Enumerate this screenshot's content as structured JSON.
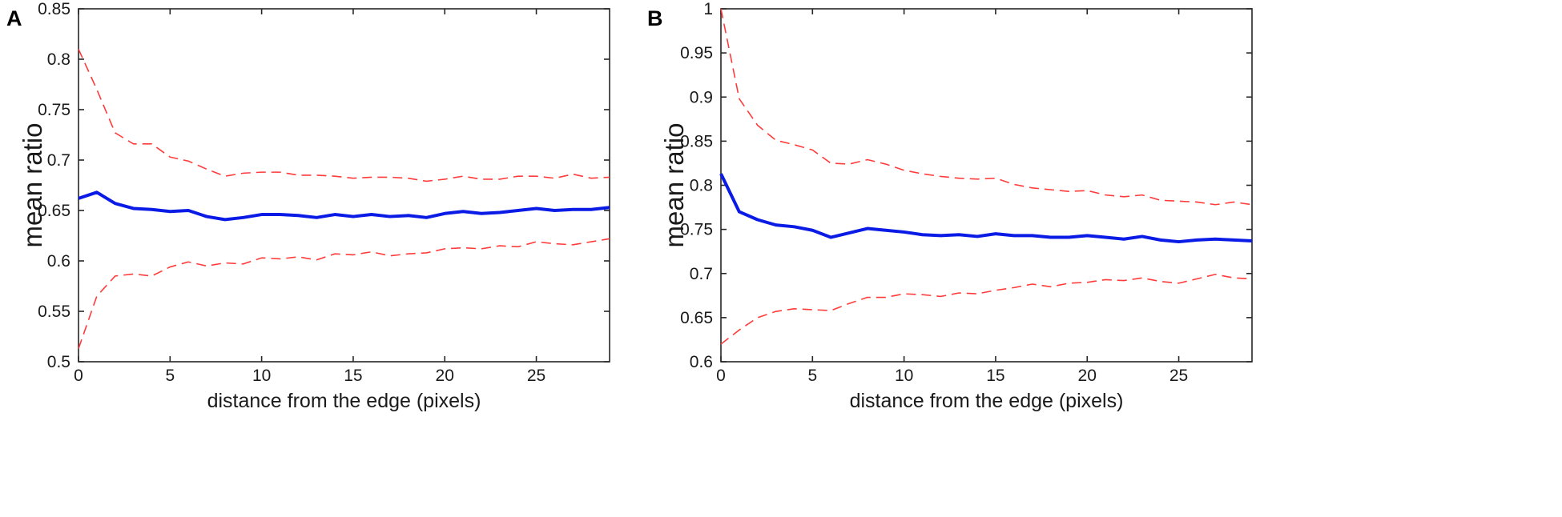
{
  "chart_data": [
    {
      "type": "line",
      "panel": "A",
      "xlabel": "distance from the edge (pixels)",
      "ylabel": "mean ratio",
      "xlim": [
        0,
        29
      ],
      "ylim": [
        0.5,
        0.85
      ],
      "xticks": [
        0,
        5,
        10,
        15,
        20,
        25
      ],
      "xtick_labels": [
        "0",
        "5",
        "10",
        "15",
        "20",
        "25"
      ],
      "yticks": [
        0.5,
        0.55,
        0.6,
        0.65,
        0.7,
        0.75,
        0.8,
        0.85
      ],
      "ytick_labels": [
        "0.5",
        "0.55",
        "0.6",
        "0.65",
        "0.7",
        "0.75",
        "0.8",
        "0.85"
      ],
      "x": [
        0,
        1,
        2,
        3,
        4,
        5,
        6,
        7,
        8,
        9,
        10,
        11,
        12,
        13,
        14,
        15,
        16,
        17,
        18,
        19,
        20,
        21,
        22,
        23,
        24,
        25,
        26,
        27,
        28,
        29
      ],
      "series": [
        {
          "name": "upper",
          "color": "#ff3b3b",
          "style": "dashed",
          "values": [
            0.81,
            0.77,
            0.727,
            0.716,
            0.716,
            0.703,
            0.699,
            0.691,
            0.684,
            0.687,
            0.688,
            0.688,
            0.685,
            0.685,
            0.684,
            0.682,
            0.683,
            0.683,
            0.682,
            0.679,
            0.681,
            0.684,
            0.681,
            0.681,
            0.684,
            0.684,
            0.682,
            0.686,
            0.682,
            0.683
          ]
        },
        {
          "name": "mean",
          "color": "#0a1be6",
          "style": "solid",
          "values": [
            0.662,
            0.668,
            0.657,
            0.652,
            0.651,
            0.649,
            0.65,
            0.644,
            0.641,
            0.643,
            0.646,
            0.646,
            0.645,
            0.643,
            0.646,
            0.644,
            0.646,
            0.644,
            0.645,
            0.643,
            0.647,
            0.649,
            0.647,
            0.648,
            0.65,
            0.652,
            0.65,
            0.651,
            0.651,
            0.653
          ]
        },
        {
          "name": "lower",
          "color": "#ff3b3b",
          "style": "dashed",
          "values": [
            0.513,
            0.565,
            0.585,
            0.587,
            0.585,
            0.594,
            0.599,
            0.595,
            0.598,
            0.597,
            0.603,
            0.602,
            0.604,
            0.601,
            0.607,
            0.606,
            0.609,
            0.605,
            0.607,
            0.608,
            0.612,
            0.613,
            0.612,
            0.615,
            0.614,
            0.619,
            0.617,
            0.616,
            0.619,
            0.622
          ]
        }
      ]
    },
    {
      "type": "line",
      "panel": "B",
      "xlabel": "distance from the edge (pixels)",
      "ylabel": "mean ratio",
      "xlim": [
        0,
        29
      ],
      "ylim": [
        0.6,
        1.0
      ],
      "xticks": [
        0,
        5,
        10,
        15,
        20,
        25
      ],
      "xtick_labels": [
        "0",
        "5",
        "10",
        "15",
        "20",
        "25"
      ],
      "yticks": [
        0.6,
        0.65,
        0.7,
        0.75,
        0.8,
        0.85,
        0.9,
        0.95,
        1.0
      ],
      "ytick_labels": [
        "0.6",
        "0.65",
        "0.7",
        "0.75",
        "0.8",
        "0.85",
        "0.9",
        "0.95",
        "1"
      ],
      "x": [
        0,
        1,
        2,
        3,
        4,
        5,
        6,
        7,
        8,
        9,
        10,
        11,
        12,
        13,
        14,
        15,
        16,
        17,
        18,
        19,
        20,
        21,
        22,
        23,
        24,
        25,
        26,
        27,
        28,
        29
      ],
      "series": [
        {
          "name": "upper",
          "color": "#ff3b3b",
          "style": "dashed",
          "values": [
            1.0,
            0.898,
            0.868,
            0.851,
            0.846,
            0.84,
            0.825,
            0.824,
            0.829,
            0.824,
            0.817,
            0.813,
            0.81,
            0.808,
            0.807,
            0.808,
            0.801,
            0.797,
            0.795,
            0.793,
            0.794,
            0.789,
            0.787,
            0.789,
            0.783,
            0.782,
            0.781,
            0.778,
            0.781,
            0.778
          ]
        },
        {
          "name": "mean",
          "color": "#0a1be6",
          "style": "solid",
          "values": [
            0.813,
            0.77,
            0.761,
            0.755,
            0.753,
            0.749,
            0.741,
            0.746,
            0.751,
            0.749,
            0.747,
            0.744,
            0.743,
            0.744,
            0.742,
            0.745,
            0.743,
            0.743,
            0.741,
            0.741,
            0.743,
            0.741,
            0.739,
            0.742,
            0.738,
            0.736,
            0.738,
            0.739,
            0.738,
            0.737
          ]
        },
        {
          "name": "lower",
          "color": "#ff3b3b",
          "style": "dashed",
          "values": [
            0.62,
            0.636,
            0.65,
            0.657,
            0.66,
            0.659,
            0.658,
            0.666,
            0.673,
            0.673,
            0.677,
            0.676,
            0.674,
            0.678,
            0.677,
            0.681,
            0.684,
            0.688,
            0.685,
            0.689,
            0.69,
            0.693,
            0.692,
            0.695,
            0.691,
            0.689,
            0.694,
            0.699,
            0.695,
            0.694
          ]
        }
      ]
    }
  ]
}
